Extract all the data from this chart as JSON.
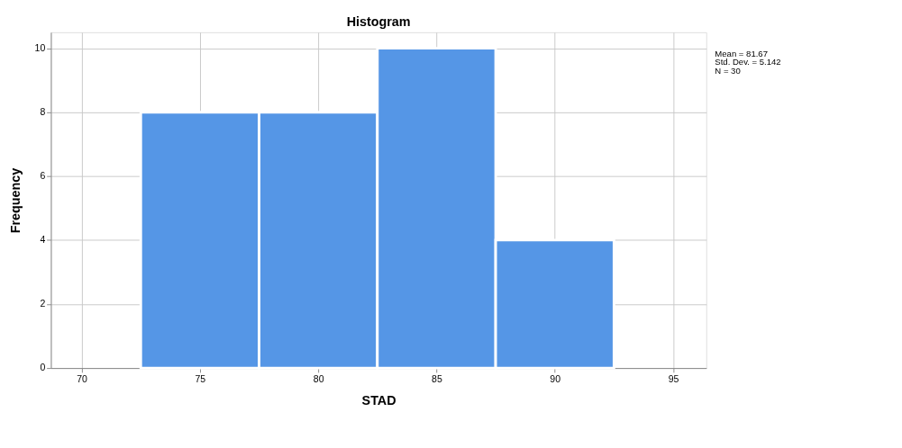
{
  "chart_data": {
    "type": "histogram",
    "title": "Histogram",
    "xlabel": "STAD",
    "ylabel": "Frequency",
    "bins": [
      72.5,
      77.5,
      82.5,
      87.5,
      92.5
    ],
    "values": [
      8,
      8,
      10,
      4
    ],
    "color": "#5596e6",
    "xlim": [
      68.7,
      96.4
    ],
    "xticks": [
      70,
      75,
      80,
      85,
      90,
      95
    ],
    "ylim": [
      0,
      10.5
    ],
    "yticks": [
      0,
      2,
      4,
      6,
      8,
      10
    ],
    "grid": true,
    "annotations": [
      "Mean = 81.67",
      "Std. Dev. = 5.142",
      "N = 30"
    ]
  }
}
